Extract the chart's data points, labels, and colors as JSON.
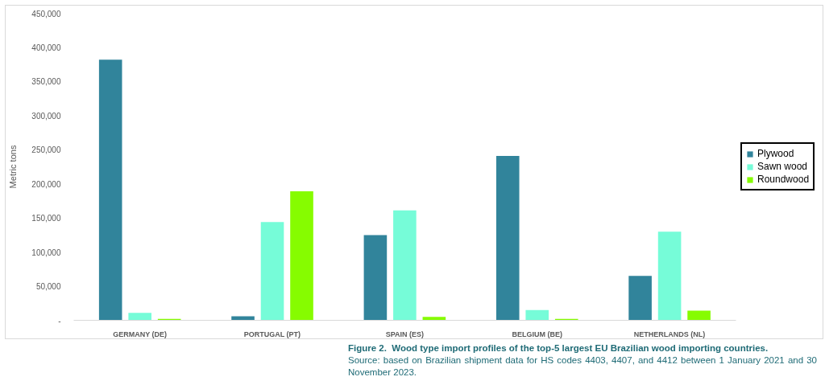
{
  "chart_data": {
    "type": "bar",
    "title": "Figure 2.  Wood type import profiles of the top-5 largest EU Brazilian wood importing countries.",
    "annotations": [
      "Source: based on Brazilian shipment data for HS codes 4403, 4407, and 4412 between 1 January 2021 and 30 November 2023."
    ],
    "ylabel": "Metric tons",
    "categories": [
      "GERMANY (DE)",
      "PORTUGAL (PT)",
      "SPAIN (ES)",
      "BELGIUM (BE)",
      "NETHERLANDS (NL)"
    ],
    "series": [
      {
        "name": "Plywood",
        "color": "#31849b",
        "values": [
          382000,
          6000,
          125000,
          241000,
          65000
        ]
      },
      {
        "name": "Sawn wood",
        "color": "#76fcd8",
        "values": [
          11000,
          144000,
          161000,
          15000,
          130000
        ]
      },
      {
        "name": "Roundwood",
        "color": "#86fc00",
        "values": [
          2000,
          189000,
          5000,
          2000,
          14000
        ]
      }
    ],
    "ylim": [
      0,
      450000
    ],
    "yticks": [
      {
        "value": 0,
        "label": "-"
      },
      {
        "value": 50000,
        "label": "50,000"
      },
      {
        "value": 100000,
        "label": "100,000"
      },
      {
        "value": 150000,
        "label": "150,000"
      },
      {
        "value": 200000,
        "label": "200,000"
      },
      {
        "value": 250000,
        "label": "250,000"
      },
      {
        "value": 300000,
        "label": "300,000"
      },
      {
        "value": 350000,
        "label": "350,000"
      },
      {
        "value": 400000,
        "label": "400,000"
      },
      {
        "value": 450000,
        "label": "450,000"
      }
    ],
    "legend": "right"
  }
}
